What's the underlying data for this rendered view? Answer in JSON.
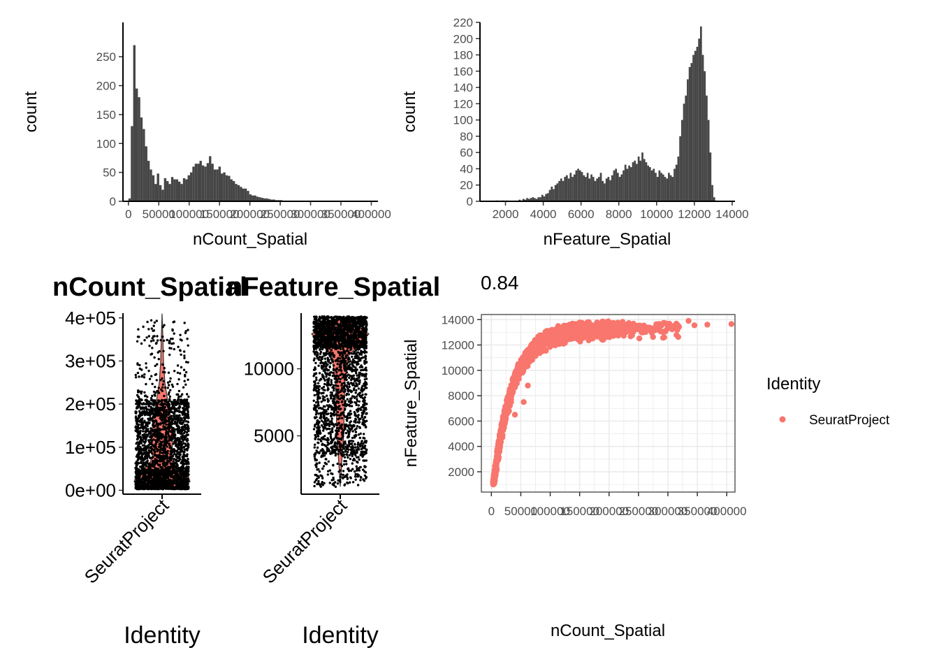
{
  "chart_data": [
    {
      "type": "bar",
      "panel": "hist-ncount",
      "xlabel": "nCount_Spatial",
      "ylabel": "count",
      "xlim": [
        -9000,
        411000
      ],
      "ylim": [
        0,
        275
      ],
      "xticks": [
        0,
        50000,
        100000,
        150000,
        200000,
        250000,
        300000,
        350000,
        400000
      ],
      "xtick_labels": [
        "0",
        "50000",
        "100000",
        "150000",
        "200000",
        "250000",
        "300000",
        "350000",
        "400000"
      ],
      "yticks": [
        0,
        50,
        100,
        150,
        200,
        250
      ],
      "yticklabels": [
        "0",
        "50",
        "100",
        "150",
        "200",
        "250"
      ],
      "bin_width": 3900,
      "bin_start": 0,
      "counts": [
        5,
        130,
        270,
        195,
        180,
        145,
        125,
        95,
        70,
        55,
        45,
        30,
        48,
        28,
        20,
        40,
        35,
        30,
        42,
        38,
        38,
        34,
        30,
        40,
        38,
        45,
        50,
        60,
        65,
        65,
        70,
        62,
        60,
        66,
        78,
        65,
        55,
        55,
        60,
        48,
        50,
        45,
        44,
        38,
        35,
        30,
        28,
        25,
        22,
        22,
        18,
        12,
        10,
        10,
        8,
        7,
        6,
        5,
        5,
        4,
        3,
        3,
        2,
        2,
        2,
        1,
        1,
        1,
        1,
        0,
        0,
        1,
        0,
        0,
        1,
        0,
        0,
        0,
        0,
        0,
        1,
        0,
        0,
        1,
        0
      ]
    },
    {
      "type": "bar",
      "panel": "hist-nfeature",
      "xlabel": "nFeature_Spatial",
      "ylabel": "count",
      "xlim": [
        650,
        14150
      ],
      "ylim": [
        0,
        220
      ],
      "xticks": [
        2000,
        4000,
        6000,
        8000,
        10000,
        12000,
        14000
      ],
      "xtick_labels": [
        "2000",
        "4000",
        "6000",
        "8000",
        "10000",
        "12000",
        "14000"
      ],
      "yticks": [
        0,
        20,
        40,
        60,
        80,
        100,
        120,
        140,
        160,
        180,
        200,
        220
      ],
      "yticklabels": [
        "0",
        "20",
        "40",
        "60",
        "80",
        "100",
        "120",
        "140",
        "160",
        "180",
        "200",
        "220"
      ],
      "bin_width": 100,
      "bin_start": 1200,
      "counts": [
        0,
        0,
        0,
        1,
        0,
        0,
        1,
        0,
        1,
        0,
        0,
        0,
        0,
        0,
        0,
        2,
        1,
        3,
        2,
        4,
        3,
        4,
        5,
        4,
        3,
        5,
        5,
        8,
        6,
        9,
        10,
        14,
        18,
        15,
        20,
        22,
        25,
        28,
        25,
        30,
        32,
        28,
        35,
        30,
        33,
        38,
        40,
        38,
        36,
        32,
        30,
        35,
        28,
        33,
        30,
        25,
        28,
        30,
        35,
        25,
        22,
        28,
        30,
        26,
        32,
        38,
        40,
        35,
        30,
        33,
        38,
        45,
        40,
        44,
        42,
        48,
        50,
        46,
        55,
        50,
        60,
        52,
        48,
        44,
        42,
        38,
        40,
        35,
        30,
        38,
        35,
        33,
        30,
        28,
        35,
        32,
        30,
        40,
        45,
        55,
        80,
        100,
        120,
        130,
        150,
        165,
        170,
        180,
        185,
        190,
        200,
        215,
        180,
        160,
        130,
        100,
        60,
        20,
        5,
        1
      ]
    },
    {
      "type": "scatter",
      "panel": "violin-ncount",
      "title": "nCount_Spatial",
      "xlabel": "Identity",
      "categories": [
        "SeuratProject"
      ],
      "ylim": [
        -9000,
        411000
      ],
      "yticks": [
        0,
        100000,
        200000,
        300000,
        400000
      ],
      "yticklabels": [
        "0e+00",
        "1e+05",
        "2e+05",
        "3e+05",
        "4e+05"
      ],
      "y_min": 3000,
      "y_max": 410000
    },
    {
      "type": "scatter",
      "panel": "violin-nfeature",
      "title": "nFeature_Spatial",
      "xlabel": "Identity",
      "categories": [
        "SeuratProject"
      ],
      "ylim": [
        650,
        14150
      ],
      "yticks": [
        5000,
        10000
      ],
      "yticklabels": [
        "5000",
        "10000"
      ],
      "y_min": 1200,
      "y_max": 13900
    },
    {
      "type": "scatter",
      "panel": "feature-scatter",
      "title": "0.84",
      "xlabel": "nCount_Spatial",
      "ylabel": "nFeature_Spatial",
      "xlim": [
        -17000,
        414000
      ],
      "ylim": [
        400,
        14400
      ],
      "xticks": [
        0,
        50000,
        100000,
        150000,
        200000,
        250000,
        300000,
        350000,
        400000
      ],
      "xtick_labels": [
        "0",
        "50000",
        "100000",
        "150000",
        "200000",
        "250000",
        "300000",
        "350000",
        "400000"
      ],
      "yticks": [
        2000,
        4000,
        6000,
        8000,
        10000,
        12000,
        14000
      ],
      "yticklabels": [
        "2000",
        "4000",
        "6000",
        "8000",
        "10000",
        "12000",
        "14000"
      ],
      "grid": true,
      "series": [
        {
          "name": "SeuratProject",
          "color": "#F8766D"
        }
      ],
      "outliers": [
        [
          335000,
          13900
        ],
        [
          367000,
          13600
        ],
        [
          408000,
          13650
        ],
        [
          318000,
          13500
        ],
        [
          345000,
          13550
        ],
        [
          40000,
          6500
        ],
        [
          30000,
          6800
        ],
        [
          55000,
          7500
        ],
        [
          62000,
          8800
        ]
      ],
      "legend_position": "right",
      "legend_title": "Identity",
      "legend_entries": [
        "SeuratProject"
      ]
    }
  ]
}
